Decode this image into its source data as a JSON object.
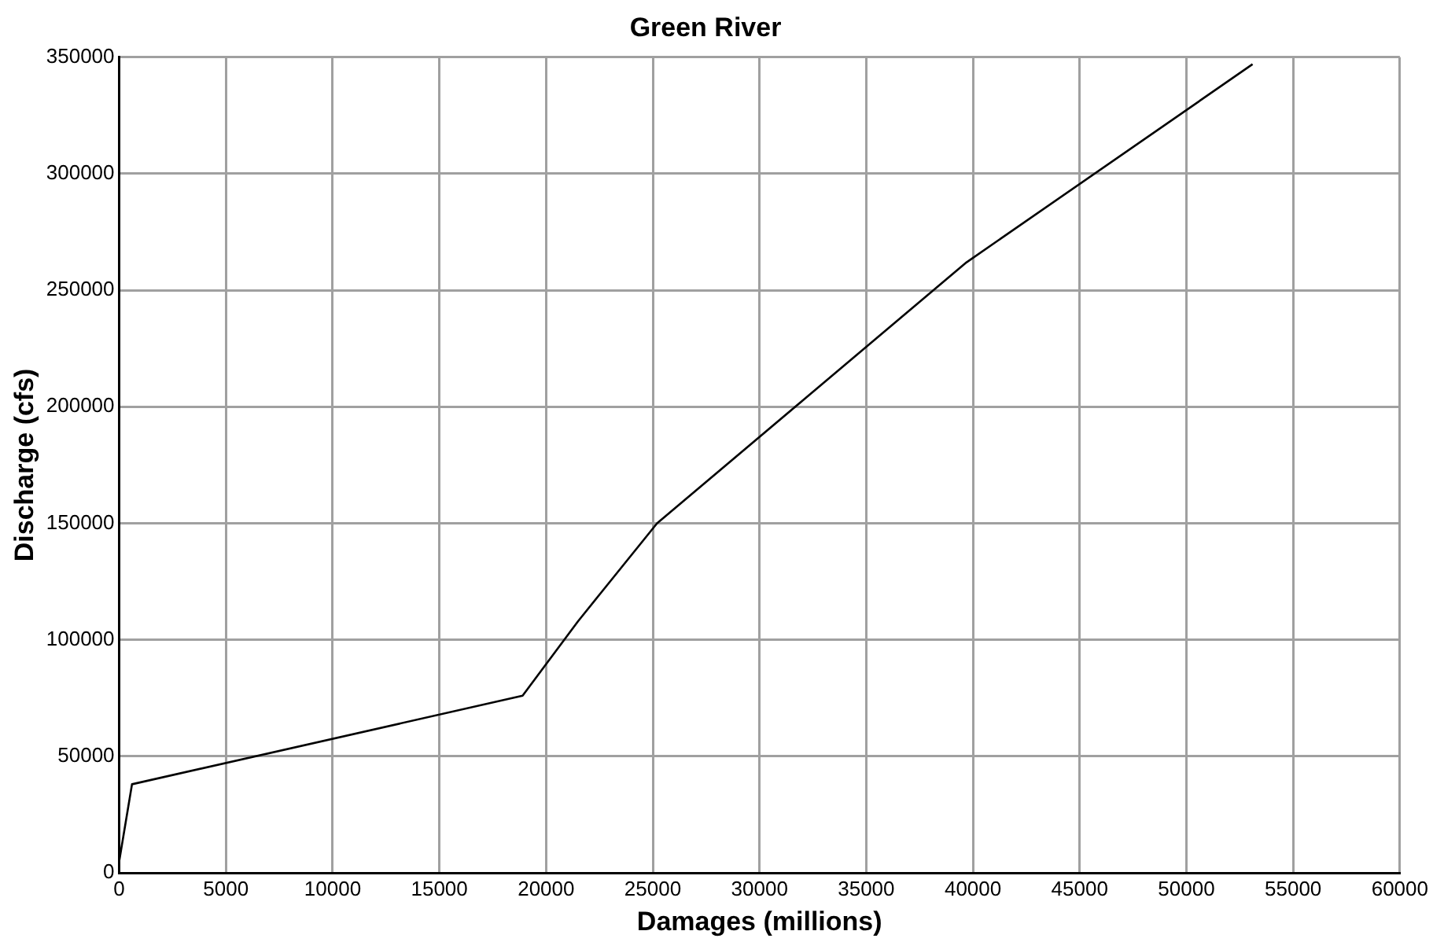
{
  "chart_data": {
    "type": "line",
    "title": "Green River",
    "xlabel": "Damages (millions)",
    "ylabel": "Discharge (cfs)",
    "series": [
      {
        "color": "#000000",
        "x": [
          0,
          600,
          18900,
          21500,
          25200,
          39700,
          53100
        ],
        "values": [
          5000,
          38000,
          76000,
          108000,
          150000,
          262000,
          347000
        ]
      }
    ],
    "xlim": [
      0,
      60000
    ],
    "xticks": [
      0,
      5000,
      10000,
      15000,
      20000,
      25000,
      30000,
      35000,
      40000,
      45000,
      50000,
      55000,
      60000
    ],
    "ylim": [
      0,
      350000
    ],
    "yticks": [
      0,
      50000,
      100000,
      150000,
      200000,
      250000,
      300000,
      350000
    ],
    "grid": true,
    "legend": false,
    "marker": "none",
    "line_style": "solid"
  }
}
